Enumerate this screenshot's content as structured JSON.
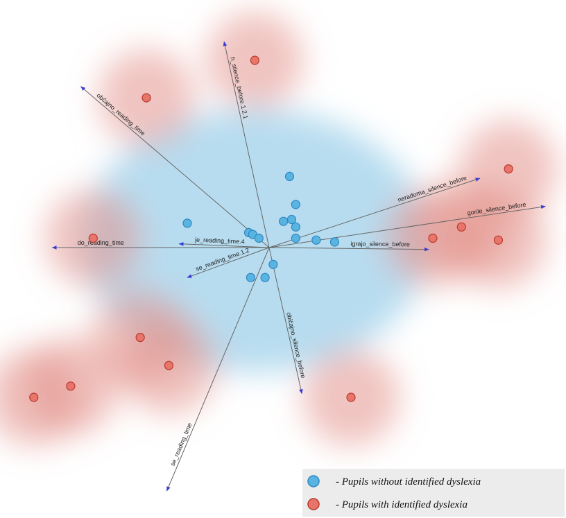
{
  "chart_data": {
    "type": "scatter",
    "subtype": "biplot",
    "title": "",
    "xlabel": "",
    "ylabel": "",
    "grid": false,
    "legend_placement": "bottom-right",
    "colors": {
      "no_dyslexia_fill": "#5ab4e0",
      "no_dyslexia_stroke": "#2f86c4",
      "dyslexia_fill": "#e8756a",
      "dyslexia_stroke": "#b8392e",
      "vector": "#666666",
      "arrowhead": "#3b3bd1",
      "density_blue": "#9fd0ea",
      "density_red": "#e3948c"
    },
    "vectors": [
      {
        "label": "h_silence_before.1.2.1",
        "dx": -0.22,
        "dy": 1.1
      },
      {
        "label": "občajno_reading_time",
        "dx": -0.92,
        "dy": 0.86
      },
      {
        "label": "neradoma_silence_before",
        "dx": 1.03,
        "dy": 0.37
      },
      {
        "label": "gorile_silence_before",
        "dx": 1.35,
        "dy": 0.22
      },
      {
        "label": "igrajo_silence_before",
        "dx": 0.78,
        "dy": -0.01
      },
      {
        "label": "do_reading_time",
        "dx": -1.06,
        "dy": 0.0
      },
      {
        "label": "je_reading_time.4",
        "dx": -0.44,
        "dy": 0.02
      },
      {
        "label": "se_reading_time.1.2",
        "dx": -0.4,
        "dy": -0.16
      },
      {
        "label": "običajno_silence_before",
        "dx": 0.16,
        "dy": -0.78
      },
      {
        "label": "se_reading_time",
        "dx": -0.5,
        "dy": -1.3
      }
    ],
    "series": [
      {
        "name": "- Pupils without identified dyslexia",
        "points": [
          {
            "x": 0.1,
            "y": 0.38
          },
          {
            "x": 0.13,
            "y": 0.23
          },
          {
            "x": -0.4,
            "y": 0.13
          },
          {
            "x": 0.11,
            "y": 0.15
          },
          {
            "x": 0.07,
            "y": 0.14
          },
          {
            "x": 0.13,
            "y": 0.11
          },
          {
            "x": -0.1,
            "y": 0.08
          },
          {
            "x": -0.08,
            "y": 0.07
          },
          {
            "x": -0.05,
            "y": 0.05
          },
          {
            "x": 0.13,
            "y": 0.05
          },
          {
            "x": 0.23,
            "y": 0.04
          },
          {
            "x": 0.32,
            "y": 0.03
          },
          {
            "x": 0.02,
            "y": -0.09
          },
          {
            "x": -0.09,
            "y": -0.16
          },
          {
            "x": -0.02,
            "y": -0.16
          }
        ]
      },
      {
        "name": "- Pupils with identified dyslexia",
        "points": [
          {
            "x": -0.07,
            "y": 1.0
          },
          {
            "x": -0.6,
            "y": 0.8
          },
          {
            "x": 1.17,
            "y": 0.42
          },
          {
            "x": -0.86,
            "y": 0.05
          },
          {
            "x": 0.94,
            "y": 0.11
          },
          {
            "x": 0.8,
            "y": 0.05
          },
          {
            "x": 1.12,
            "y": 0.04
          },
          {
            "x": -0.63,
            "y": -0.48
          },
          {
            "x": -0.49,
            "y": -0.63
          },
          {
            "x": -0.97,
            "y": -0.74
          },
          {
            "x": -1.15,
            "y": -0.8
          },
          {
            "x": 0.4,
            "y": -0.8
          }
        ]
      }
    ]
  }
}
